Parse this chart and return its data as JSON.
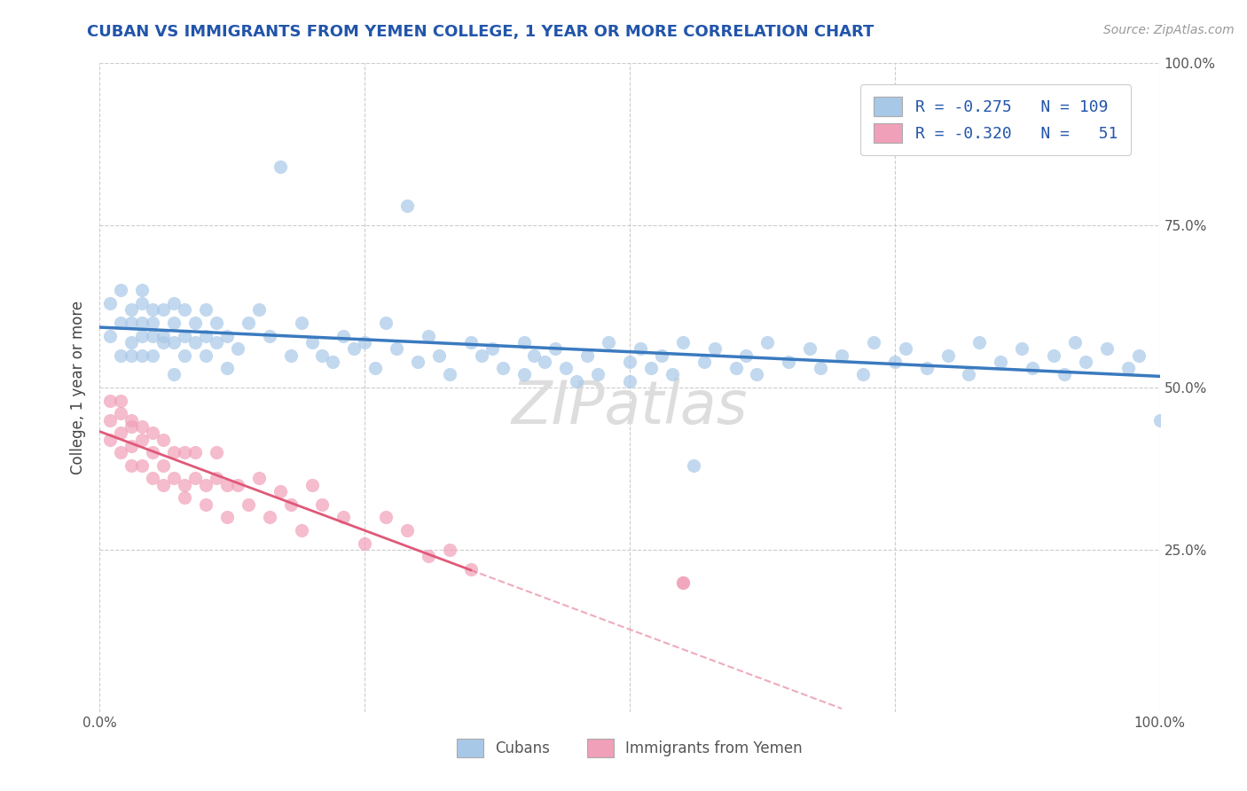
{
  "title": "CUBAN VS IMMIGRANTS FROM YEMEN COLLEGE, 1 YEAR OR MORE CORRELATION CHART",
  "source_text": "Source: ZipAtlas.com",
  "ylabel": "College, 1 year or more",
  "xlim": [
    0.0,
    1.0
  ],
  "ylim": [
    0.0,
    1.0
  ],
  "cubans_R": -0.275,
  "cubans_N": 109,
  "yemen_R": -0.32,
  "yemen_N": 51,
  "blue_dot_color": "#a8c8e8",
  "pink_dot_color": "#f0a0b8",
  "blue_line_color": "#3a7abf",
  "pink_line_color": "#e05878",
  "legend_label_cubans": "Cubans",
  "legend_label_yemen": "Immigrants from Yemen",
  "watermark": "ZIPatlas",
  "title_color": "#2255aa",
  "legend_text_color": "#2255aa",
  "background_color": "#ffffff",
  "grid_color": "#cccccc",
  "cubans_x": [
    0.01,
    0.01,
    0.02,
    0.02,
    0.02,
    0.03,
    0.03,
    0.03,
    0.03,
    0.04,
    0.04,
    0.04,
    0.04,
    0.04,
    0.05,
    0.05,
    0.05,
    0.05,
    0.06,
    0.06,
    0.06,
    0.07,
    0.07,
    0.07,
    0.07,
    0.08,
    0.08,
    0.08,
    0.09,
    0.09,
    0.1,
    0.1,
    0.1,
    0.11,
    0.11,
    0.12,
    0.12,
    0.13,
    0.14,
    0.15,
    0.16,
    0.17,
    0.18,
    0.19,
    0.2,
    0.21,
    0.22,
    0.23,
    0.24,
    0.25,
    0.26,
    0.27,
    0.28,
    0.29,
    0.3,
    0.31,
    0.32,
    0.33,
    0.35,
    0.36,
    0.37,
    0.38,
    0.4,
    0.4,
    0.41,
    0.42,
    0.43,
    0.44,
    0.45,
    0.46,
    0.47,
    0.48,
    0.5,
    0.5,
    0.51,
    0.52,
    0.53,
    0.54,
    0.55,
    0.56,
    0.57,
    0.58,
    0.6,
    0.61,
    0.62,
    0.63,
    0.65,
    0.67,
    0.68,
    0.7,
    0.72,
    0.73,
    0.75,
    0.76,
    0.78,
    0.8,
    0.82,
    0.83,
    0.85,
    0.87,
    0.88,
    0.9,
    0.91,
    0.92,
    0.93,
    0.95,
    0.97,
    0.98,
    1.0
  ],
  "cubans_y": [
    0.63,
    0.58,
    0.6,
    0.55,
    0.65,
    0.62,
    0.57,
    0.6,
    0.55,
    0.63,
    0.58,
    0.55,
    0.6,
    0.65,
    0.58,
    0.62,
    0.55,
    0.6,
    0.57,
    0.62,
    0.58,
    0.63,
    0.57,
    0.52,
    0.6,
    0.55,
    0.62,
    0.58,
    0.6,
    0.57,
    0.58,
    0.62,
    0.55,
    0.57,
    0.6,
    0.53,
    0.58,
    0.56,
    0.6,
    0.62,
    0.58,
    0.84,
    0.55,
    0.6,
    0.57,
    0.55,
    0.54,
    0.58,
    0.56,
    0.57,
    0.53,
    0.6,
    0.56,
    0.78,
    0.54,
    0.58,
    0.55,
    0.52,
    0.57,
    0.55,
    0.56,
    0.53,
    0.52,
    0.57,
    0.55,
    0.54,
    0.56,
    0.53,
    0.51,
    0.55,
    0.52,
    0.57,
    0.54,
    0.51,
    0.56,
    0.53,
    0.55,
    0.52,
    0.57,
    0.38,
    0.54,
    0.56,
    0.53,
    0.55,
    0.52,
    0.57,
    0.54,
    0.56,
    0.53,
    0.55,
    0.52,
    0.57,
    0.54,
    0.56,
    0.53,
    0.55,
    0.52,
    0.57,
    0.54,
    0.56,
    0.53,
    0.55,
    0.52,
    0.57,
    0.54,
    0.56,
    0.53,
    0.55,
    0.45
  ],
  "yemen_x": [
    0.01,
    0.01,
    0.01,
    0.02,
    0.02,
    0.02,
    0.02,
    0.03,
    0.03,
    0.03,
    0.03,
    0.04,
    0.04,
    0.04,
    0.05,
    0.05,
    0.05,
    0.06,
    0.06,
    0.06,
    0.07,
    0.07,
    0.08,
    0.08,
    0.08,
    0.09,
    0.09,
    0.1,
    0.1,
    0.11,
    0.11,
    0.12,
    0.12,
    0.13,
    0.14,
    0.15,
    0.16,
    0.17,
    0.18,
    0.19,
    0.2,
    0.21,
    0.23,
    0.25,
    0.27,
    0.29,
    0.31,
    0.33,
    0.35,
    0.55,
    0.55
  ],
  "yemen_y": [
    0.48,
    0.45,
    0.42,
    0.46,
    0.43,
    0.4,
    0.48,
    0.44,
    0.41,
    0.38,
    0.45,
    0.42,
    0.38,
    0.44,
    0.4,
    0.36,
    0.43,
    0.38,
    0.35,
    0.42,
    0.36,
    0.4,
    0.35,
    0.4,
    0.33,
    0.36,
    0.4,
    0.35,
    0.32,
    0.36,
    0.4,
    0.35,
    0.3,
    0.35,
    0.32,
    0.36,
    0.3,
    0.34,
    0.32,
    0.28,
    0.35,
    0.32,
    0.3,
    0.26,
    0.3,
    0.28,
    0.24,
    0.25,
    0.22,
    0.2,
    0.2
  ]
}
